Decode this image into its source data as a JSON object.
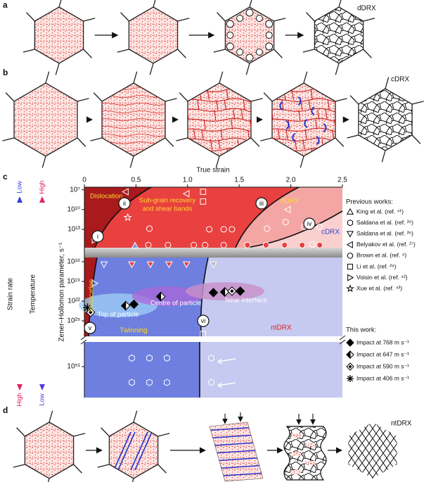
{
  "panel_a": {
    "label": "a",
    "caption": "dDRX"
  },
  "panel_b": {
    "label": "b",
    "caption": "cDRX"
  },
  "panel_c": {
    "label": "c",
    "xlabel": "True strain",
    "ylabel": "Zener–Hollomon parameter, s⁻¹",
    "yscale": "log",
    "xlim": [
      0,
      2.5
    ],
    "xticks": [
      0,
      0.5,
      {
        "value": 1,
        "label": "1.0"
      },
      1.5,
      {
        "value": 2,
        "label": "2.0"
      },
      2.5
    ],
    "ylim_segments": [
      [
        4000000.0,
        6200000000000000.0
      ],
      [
        2300000000000000.0,
        2.3e+27
      ],
      [
        1.8e+47,
        5e+55
      ]
    ],
    "yticks": [
      {
        "value": 10000000.0,
        "label": "10⁷"
      },
      {
        "value": 10000000000.0,
        "label": "10¹⁰"
      },
      {
        "value": 10000000000000.0,
        "label": "10¹³"
      },
      {
        "value": 1e+16,
        "label": "10¹⁶"
      },
      {
        "value": 1e+19,
        "label": "10¹⁹"
      },
      {
        "value": 1e+22,
        "label": "10²²"
      },
      {
        "value": 1e+25,
        "label": "10²⁵"
      },
      {
        "value": 1e+51,
        "label": "10⁵¹"
      }
    ],
    "regions": {
      "dislocation_upper": "Dislocation",
      "subgrain": [
        "Sub-grain recovery",
        "and shear bands"
      ],
      "ddrx": "dDRX",
      "cdrx": "cDRX",
      "dislocation_lower": "Dislocation",
      "twinning": "Twinning",
      "ntdrx": "ntDRX"
    },
    "stages": [
      "i",
      "ii",
      "iii",
      "iv",
      "v",
      "vi"
    ],
    "annotations": [
      "Top of particle",
      "Centre of particle",
      "Near interface"
    ],
    "strain_rate": {
      "label": "Strain rate",
      "top": "Low",
      "bottom": "High"
    },
    "temperature": {
      "label": "Temperature",
      "top": "High",
      "bottom": "Low"
    },
    "previous_works": {
      "title": "Previous works:",
      "series": [
        {
          "name": "King et al. (ref. ⁴¹)",
          "marker": "triangle-up",
          "color": "#7f93d8",
          "edgecolor": "#ffffff",
          "x": [
            0.49
          ],
          "y": [
            3000000000000000.0
          ]
        },
        {
          "name": "Saldana et al. (ref. ²⁶)",
          "marker": "hexagon",
          "color": "none",
          "edgecolor": "#ffffff",
          "x": [
            0.46,
            0.63,
            0.8,
            0.46,
            0.63,
            0.8,
            1.23,
            1.23
          ],
          "y": [
            5e+49,
            5e+49,
            5e+49,
            2.5e+53,
            2.5e+53,
            2.5e+53,
            5e+49,
            2.5e+53
          ]
        },
        {
          "name": "Saldana et al. (ref. ²⁶)",
          "marker": "triangle-down",
          "color": "none",
          "colors": [
            "none",
            "#e8413f",
            "#e8413f",
            "#e8413f",
            "#e8413f",
            "#b8b8b8"
          ],
          "edgecolor": "#ffffff",
          "x": [
            0.19,
            0.46,
            0.64,
            0.82,
            0.99,
            1.25
          ],
          "y": [
            2.5e+16,
            2.5e+16,
            2.5e+16,
            2.5e+16,
            2.5e+16,
            2.5e+16
          ]
        },
        {
          "name": "Belyakov et al. (ref. ²⁷)",
          "marker": "triangle-left",
          "color": "none",
          "edgecolor": "#ffffff",
          "x": [
            0.4,
            0.99,
            1.97
          ],
          "y": [
            20000000.0,
            40000000.0,
            10000000000.0
          ]
        },
        {
          "name": "Brown et al. (ref. ⁹)",
          "marker": "circle",
          "color": "none",
          "colors": [
            "none",
            "none",
            "none",
            "none",
            "none",
            "none",
            "none",
            "none",
            "none",
            "#e8413f",
            "#e8413f",
            "#e8413f",
            "#e8413f",
            "#e8413f",
            "#e8413f",
            "#e8413f",
            "#e8413f",
            "#e8413f",
            "#e8413f"
          ],
          "edgecolor": "#ffffff",
          "x": [
            0.63,
            1.21,
            1.35,
            1.43,
            1.77,
            1.95,
            2.13,
            2.28,
            2.21,
            0.62,
            0.81,
            1.06,
            1.17,
            1.35,
            1.58,
            1.76,
            1.94,
            2.11,
            2.28
          ],
          "y": [
            8000000000000.0,
            10000000000000.0,
            10000000000000.0,
            10000000000000.0,
            8000000000000.0,
            800000000000.0,
            4000000000000.0,
            4000000000000.0,
            2000000000000000.0,
            2500000000000000.0,
            2500000000000000.0,
            2500000000000000.0,
            2500000000000000.0,
            2500000000000000.0,
            2500000000000000.0,
            2500000000000000.0,
            2500000000000000.0,
            2500000000000000.0,
            2500000000000000.0
          ]
        },
        {
          "name": "Li et al. (ref. ²⁸)",
          "marker": "square",
          "color": "none",
          "edgecolor": "#ffffff",
          "x": [
            1.15,
            1.15,
            1.15
          ],
          "y": [
            20000000.0,
            600000000.0,
            1e+27
          ]
        },
        {
          "name": "Voisin et al. (ref. ⁴²)",
          "marker": "triangle-right",
          "color": "none",
          "edgecolor": "#ffffff",
          "x": [
            0.1,
            0.1
          ],
          "y": [
            400000000000000.0,
            2e+19
          ]
        },
        {
          "name": "Xue et al. (ref. ⁴³)",
          "marker": "star",
          "color": "none",
          "edgecolor": "#ffffff",
          "x": [
            0.42
          ],
          "y": [
            160000000000.0
          ]
        }
      ]
    },
    "this_work": {
      "title": "This work:",
      "series": [
        {
          "name": "Impact at 768 m s⁻¹",
          "marker": "diamond",
          "color": "#000000",
          "edgecolor": "#000000",
          "x": [
            0.48,
            1.25,
            1.51
          ],
          "y": [
            3e+22,
            5e+20,
            3e+20
          ]
        },
        {
          "name": "Impact at 647 m s⁻¹",
          "marker": "diamond-half",
          "color": "#ffffff",
          "edgecolor": "#000000",
          "x": [
            0.4,
            0.74,
            1.36
          ],
          "y": [
            5e+22,
            2e+21,
            4e+20
          ]
        },
        {
          "name": "Impact at 590 m s⁻¹",
          "marker": "diamond-dot",
          "color": "#ffffff",
          "edgecolor": "#000000",
          "x": [
            0.06,
            1.43
          ],
          "y": [
            5e+23,
            3e+20
          ]
        },
        {
          "name": "Impact at 406 m s⁻¹",
          "marker": "asterisk",
          "color": "#000000",
          "edgecolor": "#000000",
          "x": [
            0.03
          ],
          "y": [
            1e+23
          ]
        }
      ]
    }
  },
  "panel_d": {
    "label": "d",
    "caption": "ntDRX"
  }
}
